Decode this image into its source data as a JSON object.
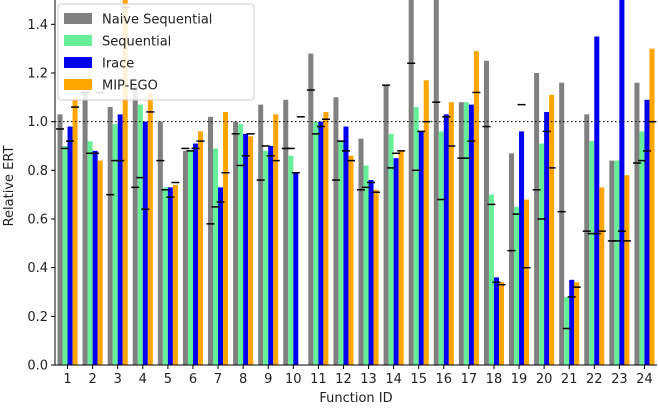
{
  "chart_data": {
    "type": "bar",
    "xlabel": "Function ID",
    "ylabel": "Relative ERT",
    "ylim": [
      0.0,
      1.5
    ],
    "yticks": [
      0.0,
      0.2,
      0.4,
      0.6,
      0.8,
      1.0,
      1.2,
      1.4
    ],
    "reference_line": 1.0,
    "legend_position": "top-left",
    "categories": [
      "1",
      "2",
      "3",
      "4",
      "5",
      "6",
      "7",
      "8",
      "9",
      "10",
      "11",
      "12",
      "13",
      "14",
      "15",
      "16",
      "17",
      "18",
      "19",
      "20",
      "21",
      "22",
      "23",
      "24"
    ],
    "series": [
      {
        "name": "Naive Sequential",
        "color": "#808080",
        "values": [
          1.03,
          1.12,
          1.06,
          1.15,
          1.0,
          0.88,
          1.02,
          1.0,
          1.07,
          1.09,
          1.28,
          1.1,
          0.93,
          1.15,
          1.5,
          1.5,
          1.08,
          1.25,
          0.87,
          1.2,
          1.16,
          1.03,
          0.84,
          1.16
        ],
        "markers": [
          0.97,
          1.12,
          0.7,
          0.73,
          0.84,
          0.89,
          0.58,
          0.95,
          0.76,
          0.89,
          1.13,
          0.76,
          0.72,
          1.15,
          1.24,
          1.08,
          0.85,
          0.98,
          0.47,
          0.72,
          0.63,
          0.55,
          0.51,
          0.83
        ]
      },
      {
        "name": "Sequential",
        "color": "#66ee99",
        "values": [
          0.9,
          0.92,
          0.99,
          1.07,
          0.73,
          0.88,
          0.89,
          0.99,
          0.88,
          0.86,
          1.0,
          0.92,
          0.82,
          0.95,
          1.06,
          0.96,
          1.08,
          0.7,
          0.65,
          0.91,
          0.28,
          0.92,
          0.84,
          0.96
        ],
        "markers": [
          0.89,
          0.87,
          0.84,
          0.77,
          0.72,
          0.88,
          0.65,
          0.82,
          0.9,
          0.89,
          0.95,
          0.92,
          0.73,
          0.81,
          0.8,
          0.68,
          0.85,
          0.66,
          0.62,
          0.6,
          0.15,
          0.54,
          0.51,
          0.84
        ]
      },
      {
        "name": "Irace",
        "color": "#0000ee",
        "values": [
          0.98,
          0.88,
          1.03,
          1.0,
          0.73,
          0.91,
          0.73,
          0.95,
          0.9,
          0.79,
          1.0,
          0.98,
          0.76,
          0.85,
          0.96,
          1.03,
          1.07,
          0.36,
          0.96,
          1.04,
          0.35,
          1.35,
          1.5,
          1.09
        ],
        "markers": [
          0.92,
          0.87,
          0.84,
          0.64,
          0.69,
          0.89,
          0.67,
          0.86,
          0.86,
          0.79,
          0.98,
          0.88,
          0.75,
          0.87,
          0.96,
          1.02,
          0.92,
          0.34,
          1.07,
          0.96,
          0.28,
          0.54,
          0.55,
          0.88
        ]
      },
      {
        "name": "MIP-EGO",
        "color": "#ffa500",
        "values": [
          1.1,
          0.84,
          1.5,
          1.12,
          0.74,
          0.96,
          1.04,
          0.94,
          1.03,
          0.0,
          1.04,
          0.86,
          0.72,
          0.88,
          1.17,
          1.08,
          1.29,
          0.34,
          0.68,
          1.11,
          0.34,
          0.73,
          0.78,
          1.3
        ],
        "markers": [
          1.06,
          1.12,
          1.47,
          1.04,
          0.75,
          0.92,
          0.79,
          0.95,
          0.84,
          1.02,
          1.01,
          0.84,
          0.71,
          0.88,
          1.0,
          0.9,
          1.12,
          0.33,
          0.4,
          0.81,
          0.32,
          0.55,
          0.51,
          1.0
        ]
      }
    ]
  }
}
